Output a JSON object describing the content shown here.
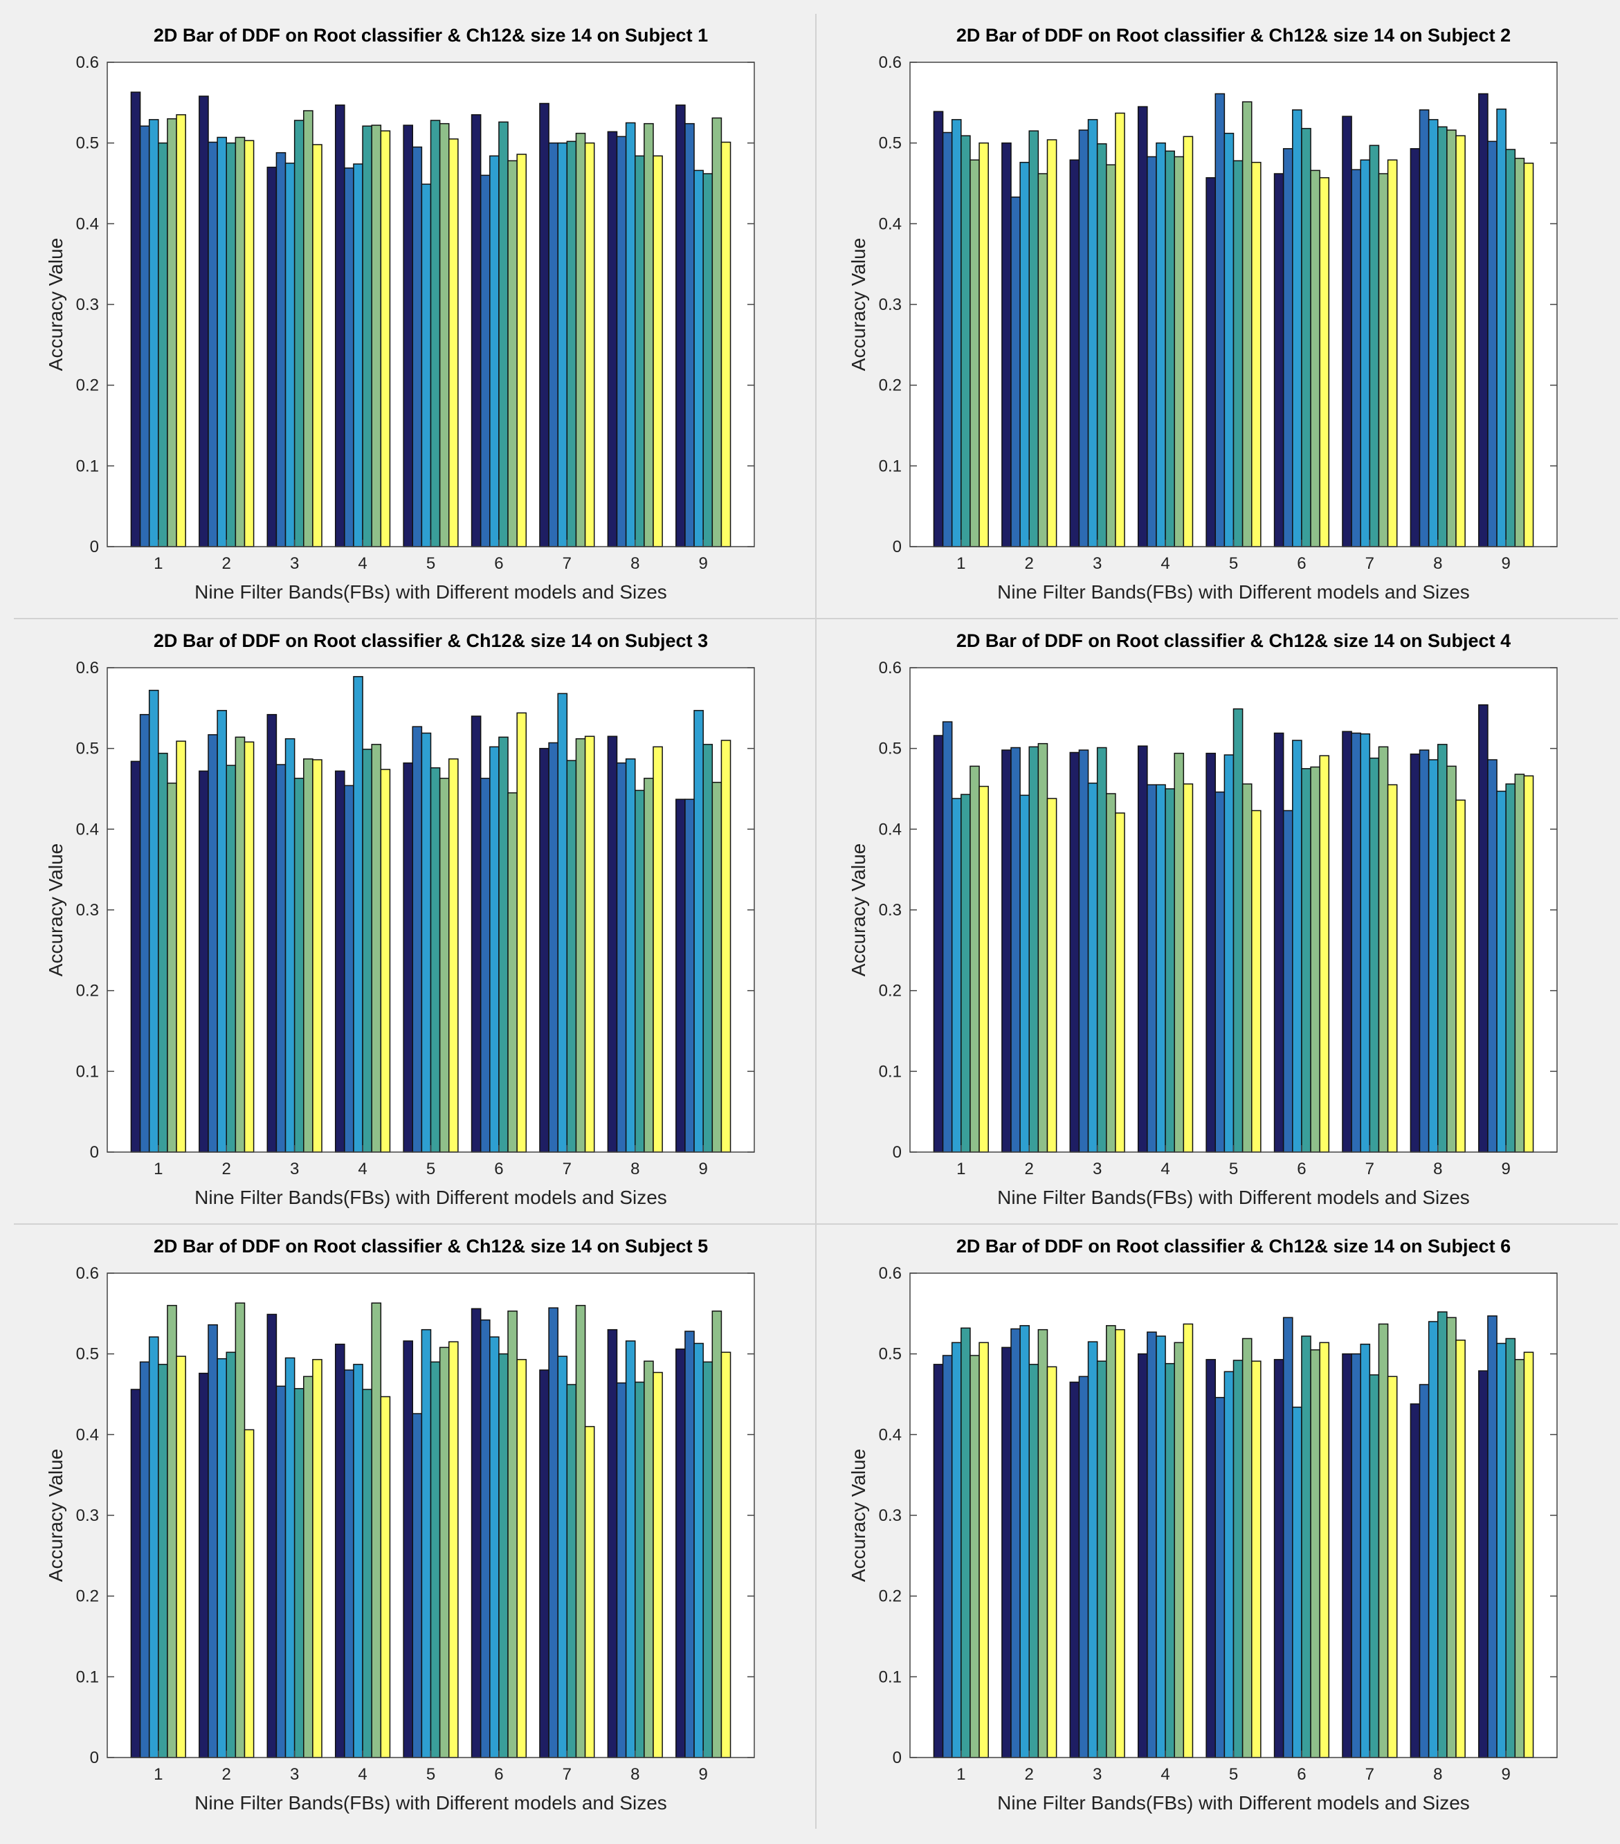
{
  "figure": {
    "title": ""
  },
  "colors": {
    "series": [
      "#1e1e63",
      "#2d6bb3",
      "#2e9fd1",
      "#3a9e9a",
      "#8fbf8a",
      "#ffff66"
    ],
    "axes_bg": "#ffffff",
    "frame": "#444444"
  },
  "chart_data": [
    {
      "type": "bar",
      "title": "2D Bar of DDF on Root classifier & Ch12& size 14 on Subject 1",
      "xlabel": "Nine Filter Bands(FBs) with Different models and Sizes",
      "ylabel": "Accuracy Value",
      "ylim": [
        0,
        0.6
      ],
      "yticks": [
        "0",
        "0.1",
        "0.2",
        "0.3",
        "0.4",
        "0.5",
        "0.6"
      ],
      "categories": [
        "1",
        "2",
        "3",
        "4",
        "5",
        "6",
        "7",
        "8",
        "9"
      ],
      "grid": false,
      "values": [
        [
          0.563,
          0.521,
          0.529,
          0.5,
          0.53,
          0.535
        ],
        [
          0.558,
          0.501,
          0.507,
          0.5,
          0.507,
          0.503
        ],
        [
          0.47,
          0.488,
          0.475,
          0.528,
          0.54,
          0.498
        ],
        [
          0.547,
          0.469,
          0.474,
          0.521,
          0.522,
          0.515
        ],
        [
          0.522,
          0.495,
          0.449,
          0.528,
          0.524,
          0.505
        ],
        [
          0.535,
          0.46,
          0.484,
          0.526,
          0.478,
          0.486
        ],
        [
          0.549,
          0.5,
          0.5,
          0.502,
          0.512,
          0.5
        ],
        [
          0.514,
          0.508,
          0.525,
          0.484,
          0.524,
          0.484
        ],
        [
          0.547,
          0.524,
          0.466,
          0.462,
          0.531,
          0.501
        ]
      ]
    },
    {
      "type": "bar",
      "title": "2D Bar of DDF on Root classifier & Ch12& size 14 on Subject 2",
      "xlabel": "Nine Filter Bands(FBs) with Different models and Sizes",
      "ylabel": "Accuracy Value",
      "ylim": [
        0,
        0.6
      ],
      "yticks": [
        "0",
        "0.1",
        "0.2",
        "0.3",
        "0.4",
        "0.5",
        "0.6"
      ],
      "categories": [
        "1",
        "2",
        "3",
        "4",
        "5",
        "6",
        "7",
        "8",
        "9"
      ],
      "grid": false,
      "values": [
        [
          0.539,
          0.513,
          0.529,
          0.509,
          0.479,
          0.5
        ],
        [
          0.5,
          0.433,
          0.476,
          0.515,
          0.462,
          0.504
        ],
        [
          0.479,
          0.516,
          0.529,
          0.499,
          0.473,
          0.537
        ],
        [
          0.545,
          0.483,
          0.5,
          0.49,
          0.483,
          0.508
        ],
        [
          0.457,
          0.561,
          0.512,
          0.478,
          0.551,
          0.476
        ],
        [
          0.462,
          0.493,
          0.541,
          0.518,
          0.466,
          0.457
        ],
        [
          0.533,
          0.467,
          0.479,
          0.497,
          0.462,
          0.479
        ],
        [
          0.493,
          0.541,
          0.529,
          0.52,
          0.516,
          0.509
        ],
        [
          0.561,
          0.502,
          0.542,
          0.492,
          0.481,
          0.475
        ]
      ]
    },
    {
      "type": "bar",
      "title": "2D Bar of DDF on Root classifier & Ch12& size 14 on Subject 3",
      "xlabel": "Nine Filter Bands(FBs) with Different models and Sizes",
      "ylabel": "Accuracy Value",
      "ylim": [
        0,
        0.6
      ],
      "yticks": [
        "0",
        "0.1",
        "0.2",
        "0.3",
        "0.4",
        "0.5",
        "0.6"
      ],
      "categories": [
        "1",
        "2",
        "3",
        "4",
        "5",
        "6",
        "7",
        "8",
        "9"
      ],
      "grid": false,
      "values": [
        [
          0.484,
          0.542,
          0.572,
          0.494,
          0.457,
          0.509
        ],
        [
          0.472,
          0.517,
          0.547,
          0.479,
          0.514,
          0.508
        ],
        [
          0.542,
          0.48,
          0.512,
          0.463,
          0.487,
          0.486
        ],
        [
          0.472,
          0.454,
          0.589,
          0.499,
          0.505,
          0.474
        ],
        [
          0.482,
          0.527,
          0.519,
          0.476,
          0.463,
          0.487
        ],
        [
          0.54,
          0.463,
          0.502,
          0.514,
          0.445,
          0.544
        ],
        [
          0.5,
          0.507,
          0.568,
          0.485,
          0.512,
          0.515
        ],
        [
          0.515,
          0.482,
          0.487,
          0.448,
          0.463,
          0.502
        ],
        [
          0.437,
          0.437,
          0.547,
          0.505,
          0.458,
          0.51
        ]
      ]
    },
    {
      "type": "bar",
      "title": "2D Bar of DDF on Root classifier & Ch12& size 14 on Subject 4",
      "xlabel": "Nine Filter Bands(FBs) with Different models and Sizes",
      "ylabel": "Accuracy Value",
      "ylim": [
        0,
        0.6
      ],
      "yticks": [
        "0",
        "0.1",
        "0.2",
        "0.3",
        "0.4",
        "0.5",
        "0.6"
      ],
      "categories": [
        "1",
        "2",
        "3",
        "4",
        "5",
        "6",
        "7",
        "8",
        "9"
      ],
      "grid": false,
      "values": [
        [
          0.516,
          0.533,
          0.438,
          0.443,
          0.478,
          0.453
        ],
        [
          0.498,
          0.501,
          0.442,
          0.502,
          0.506,
          0.438
        ],
        [
          0.495,
          0.498,
          0.457,
          0.501,
          0.444,
          0.42
        ],
        [
          0.503,
          0.455,
          0.455,
          0.45,
          0.494,
          0.456
        ],
        [
          0.494,
          0.446,
          0.492,
          0.549,
          0.456,
          0.423
        ],
        [
          0.519,
          0.423,
          0.51,
          0.475,
          0.477,
          0.491
        ],
        [
          0.521,
          0.519,
          0.518,
          0.488,
          0.502,
          0.455
        ],
        [
          0.493,
          0.498,
          0.486,
          0.505,
          0.478,
          0.436
        ],
        [
          0.554,
          0.486,
          0.447,
          0.456,
          0.468,
          0.466
        ]
      ]
    },
    {
      "type": "bar",
      "title": "2D Bar of DDF on Root classifier & Ch12& size 14 on Subject 5",
      "xlabel": "Nine Filter Bands(FBs) with Different models and Sizes",
      "ylabel": "Accuracy Value",
      "ylim": [
        0,
        0.6
      ],
      "yticks": [
        "0",
        "0.1",
        "0.2",
        "0.3",
        "0.4",
        "0.5",
        "0.6"
      ],
      "categories": [
        "1",
        "2",
        "3",
        "4",
        "5",
        "6",
        "7",
        "8",
        "9"
      ],
      "grid": false,
      "values": [
        [
          0.456,
          0.49,
          0.521,
          0.487,
          0.56,
          0.497
        ],
        [
          0.476,
          0.536,
          0.494,
          0.502,
          0.563,
          0.406
        ],
        [
          0.549,
          0.46,
          0.495,
          0.457,
          0.472,
          0.493
        ],
        [
          0.512,
          0.48,
          0.487,
          0.456,
          0.563,
          0.447
        ],
        [
          0.516,
          0.426,
          0.53,
          0.49,
          0.508,
          0.515
        ],
        [
          0.556,
          0.542,
          0.521,
          0.5,
          0.553,
          0.493
        ],
        [
          0.48,
          0.557,
          0.497,
          0.462,
          0.56,
          0.41
        ],
        [
          0.53,
          0.464,
          0.516,
          0.465,
          0.491,
          0.477
        ],
        [
          0.506,
          0.528,
          0.513,
          0.49,
          0.553,
          0.502
        ]
      ]
    },
    {
      "type": "bar",
      "title": "2D Bar of DDF on Root classifier & Ch12& size 14 on Subject 6",
      "xlabel": "Nine Filter Bands(FBs) with Different models and Sizes",
      "ylabel": "Accuracy Value",
      "ylim": [
        0,
        0.6
      ],
      "yticks": [
        "0",
        "0.1",
        "0.2",
        "0.3",
        "0.4",
        "0.5",
        "0.6"
      ],
      "categories": [
        "1",
        "2",
        "3",
        "4",
        "5",
        "6",
        "7",
        "8",
        "9"
      ],
      "grid": false,
      "values": [
        [
          0.487,
          0.498,
          0.514,
          0.532,
          0.498,
          0.514
        ],
        [
          0.508,
          0.531,
          0.535,
          0.487,
          0.53,
          0.484
        ],
        [
          0.465,
          0.472,
          0.515,
          0.491,
          0.535,
          0.53
        ],
        [
          0.5,
          0.527,
          0.522,
          0.488,
          0.514,
          0.537
        ],
        [
          0.493,
          0.446,
          0.478,
          0.492,
          0.519,
          0.491
        ],
        [
          0.493,
          0.545,
          0.434,
          0.522,
          0.505,
          0.514
        ],
        [
          0.5,
          0.5,
          0.512,
          0.474,
          0.537,
          0.472
        ],
        [
          0.438,
          0.462,
          0.54,
          0.552,
          0.545,
          0.517
        ],
        [
          0.479,
          0.547,
          0.513,
          0.519,
          0.493,
          0.502
        ]
      ]
    }
  ]
}
